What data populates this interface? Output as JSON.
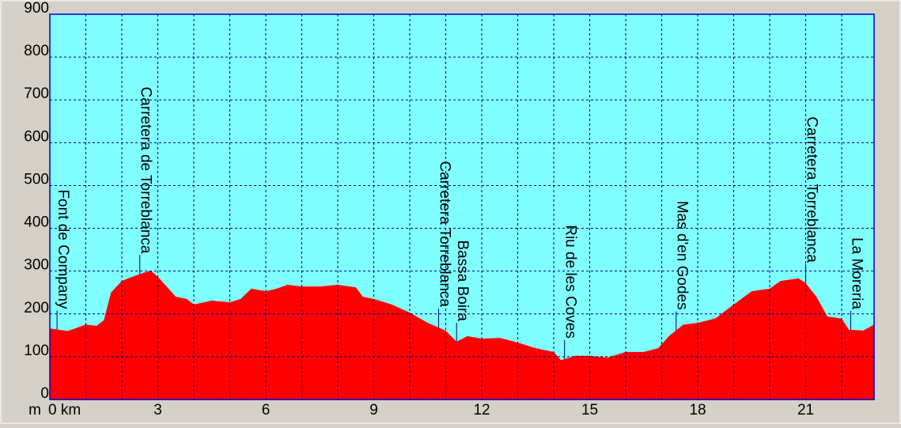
{
  "chart_data": {
    "type": "area",
    "y_label": "m",
    "x": [
      0,
      0.5,
      1,
      1.3,
      1.5,
      1.7,
      2,
      2.3,
      2.6,
      2.8,
      3,
      3.3,
      3.5,
      3.8,
      4,
      4.5,
      5,
      5.3,
      5.6,
      6,
      6.3,
      6.6,
      7,
      7.5,
      8,
      8.5,
      8.7,
      9,
      9.5,
      10,
      10.5,
      11,
      11.3,
      11.6,
      12,
      12.5,
      13,
      13.5,
      14,
      14.2,
      14.6,
      15,
      15.5,
      16,
      16.5,
      16.9,
      17.2,
      17.6,
      18,
      18.5,
      19,
      19.5,
      20,
      20.3,
      20.8,
      21,
      21.3,
      21.6,
      22,
      22.2,
      22.6,
      22.9
    ],
    "values": [
      166,
      160,
      175,
      172,
      185,
      250,
      277,
      287,
      296,
      301,
      287,
      259,
      240,
      235,
      222,
      231,
      227,
      235,
      259,
      253,
      259,
      268,
      264,
      264,
      268,
      262,
      240,
      235,
      222,
      203,
      179,
      161,
      135,
      148,
      142,
      144,
      133,
      120,
      111,
      92,
      102,
      102,
      98,
      111,
      111,
      120,
      148,
      175,
      179,
      190,
      222,
      253,
      259,
      277,
      283,
      272,
      240,
      194,
      189,
      163,
      161,
      175
    ],
    "color": "#ff0000",
    "xlim": [
      0,
      22.9
    ],
    "ylim": [
      0,
      900
    ],
    "xticks": [
      {
        "value": 0,
        "label": "0 km"
      },
      3,
      6,
      9,
      12,
      15,
      18,
      21
    ],
    "xgrid": [
      1,
      2,
      3,
      4,
      5,
      6,
      7,
      8,
      9,
      10,
      11,
      12,
      13,
      14,
      15,
      16,
      17,
      18,
      19,
      20,
      21,
      22
    ],
    "yticks": [
      0,
      100,
      200,
      300,
      400,
      500,
      600,
      700,
      800,
      900
    ],
    "grid": true,
    "waypoints": [
      {
        "label": "Font de Company",
        "x": 0.2
      },
      {
        "label": "Carretera de Torreblanca",
        "x": 2.5
      },
      {
        "label": "Carretera Torreblanca",
        "x": 10.8
      },
      {
        "label": "Bassa Boira",
        "x": 11.3
      },
      {
        "label": "Riu de les Coves",
        "x": 14.3
      },
      {
        "label": "Mas d'en Godes",
        "x": 17.4
      },
      {
        "label": "Carretera Torreblanca",
        "x": 21
      },
      {
        "label": "La Moreria",
        "x": 22.25
      }
    ]
  }
}
